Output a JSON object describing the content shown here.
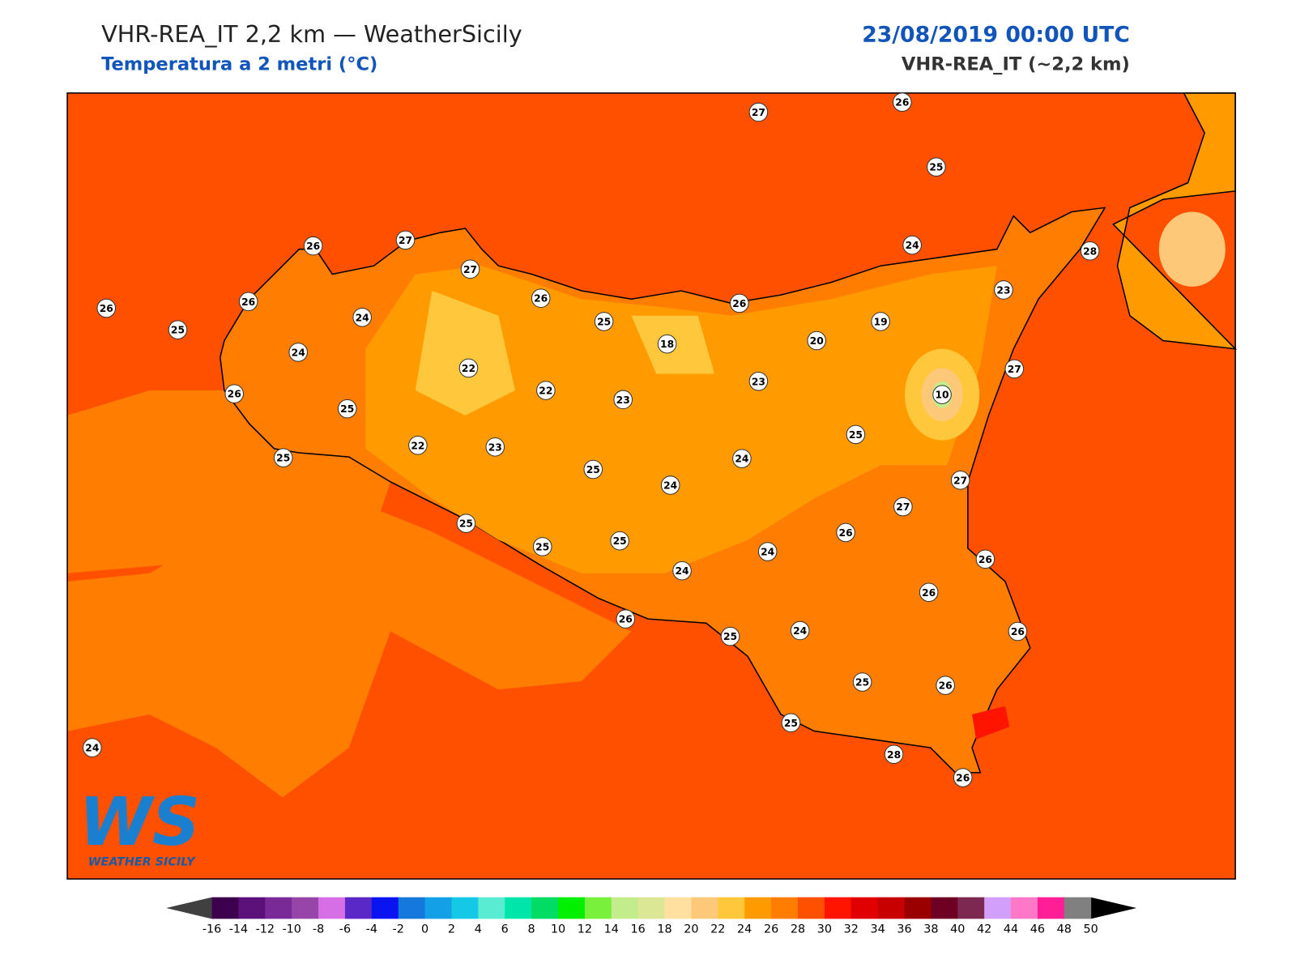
{
  "header": {
    "title": "VHR-REA_IT 2,2 km — WeatherSicily",
    "subtitle": "Temperatura a 2 metri (°C)",
    "datetime": "23/08/2019 00:00 UTC",
    "model": "VHR-REA_IT (~2,2 km)"
  },
  "logo": {
    "mark": "WS",
    "text": "WEATHER SICILY"
  },
  "stations": [
    27,
    26,
    25,
    26,
    27,
    27,
    24,
    28,
    26,
    26,
    25,
    24,
    26,
    25,
    26,
    23,
    19,
    20,
    18,
    24,
    22,
    22,
    23,
    23,
    27,
    10,
    26,
    25,
    25,
    22,
    23,
    25,
    25,
    24,
    24,
    27,
    27,
    25,
    25,
    25,
    26,
    24,
    24,
    26,
    26,
    26,
    25,
    24,
    26,
    25,
    26,
    25,
    28,
    26,
    24
  ],
  "colorbar": {
    "ticks": [
      -16,
      -14,
      -12,
      -10,
      -8,
      -6,
      -4,
      -2,
      0,
      2,
      4,
      6,
      8,
      10,
      12,
      14,
      16,
      18,
      20,
      22,
      24,
      26,
      28,
      30,
      32,
      34,
      36,
      38,
      40,
      42,
      44,
      46,
      48,
      50
    ],
    "colors": [
      "#3d004f",
      "#5c107a",
      "#7a2a96",
      "#9845aa",
      "#d66fe6",
      "#5b28c8",
      "#0a14f0",
      "#1478dc",
      "#14a0e6",
      "#14c8e6",
      "#5aecd2",
      "#00e6aa",
      "#00dc64",
      "#00f000",
      "#78f03c",
      "#c3ec8c",
      "#dce796",
      "#ffe0a0",
      "#fdc878",
      "#ffc83c",
      "#ff9b00",
      "#ff7d00",
      "#ff5000",
      "#ff1400",
      "#e10000",
      "#c80000",
      "#9b0000",
      "#6e0023",
      "#7d2850",
      "#d2a0fa",
      "#ff78c8",
      "#ff1e96",
      "#808080"
    ],
    "under": "#404040",
    "over": "#000000"
  }
}
